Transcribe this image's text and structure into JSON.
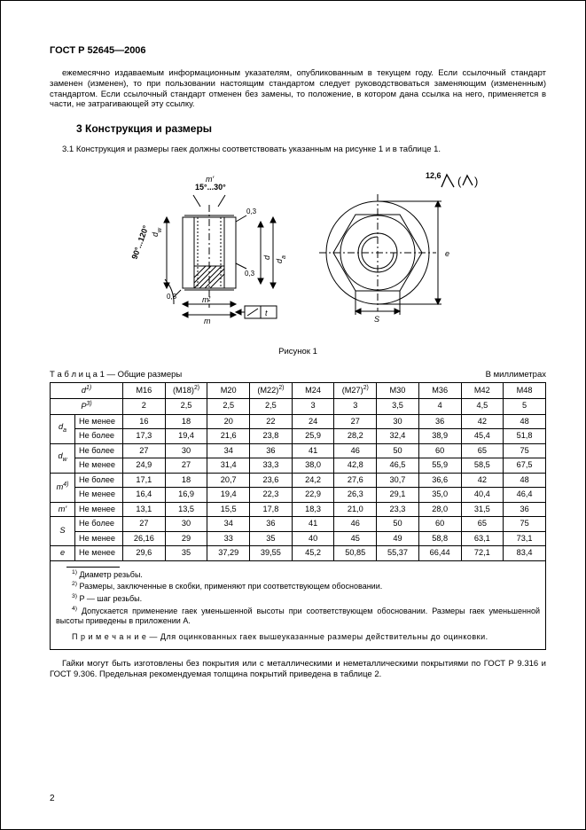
{
  "std_id": "ГОСТ Р 52645—2006",
  "top_para": "ежемесячно издаваемым информационным указателям, опубликованным в текущем году. Если ссылочный стандарт заменен (изменен), то при пользовании настоящим стандартом следует руководствоваться заменяющим (измененным) стандартом. Если ссылочный стандарт отменен без замены, то положение, в котором дана ссылка на него, применяется в части, не затрагивающей эту ссылку.",
  "sec3_title": "3  Конструкция и размеры",
  "sec3_1": "3.1  Конструкция и размеры гаек должны соответствовать указанным на рисунке 1 и в таблице 1.",
  "fig_caption": "Рисунок 1",
  "table_title_left": "Т а б л и ц а  1 — Общие размеры",
  "table_title_right": "В миллиметрах",
  "col_headers": [
    "M16",
    "(M18)",
    "M20",
    "(M22)",
    "M24",
    "(M27)",
    "M30",
    "M36",
    "M42",
    "M48"
  ],
  "col_head_sup2": "2)",
  "rows": [
    {
      "hdr": "P",
      "hsup": "3)",
      "span": 2,
      "lbl": "",
      "vals": [
        "2",
        "2,5",
        "2,5",
        "2,5",
        "3",
        "3",
        "3,5",
        "4",
        "4,5",
        "5"
      ]
    },
    {
      "hdr": "d",
      "hsub": "a",
      "span": 2,
      "lbl": "Не менее",
      "vals": [
        "16",
        "18",
        "20",
        "22",
        "24",
        "27",
        "30",
        "36",
        "42",
        "48"
      ]
    },
    {
      "hdr": "",
      "span": 0,
      "lbl": "Не более",
      "vals": [
        "17,3",
        "19,4",
        "21,6",
        "23,8",
        "25,9",
        "28,2",
        "32,4",
        "38,9",
        "45,4",
        "51,8"
      ]
    },
    {
      "hdr": "d",
      "hsub": "w",
      "span": 2,
      "lbl": "Не более",
      "vals": [
        "27",
        "30",
        "34",
        "36",
        "41",
        "46",
        "50",
        "60",
        "65",
        "75"
      ]
    },
    {
      "hdr": "",
      "span": 0,
      "lbl": "Не менее",
      "vals": [
        "24,9",
        "27",
        "31,4",
        "33,3",
        "38,0",
        "42,8",
        "46,5",
        "55,9",
        "58,5",
        "67,5"
      ]
    },
    {
      "hdr": "m",
      "hsup": "4)",
      "span": 2,
      "lbl": "Не более",
      "vals": [
        "17,1",
        "18",
        "20,7",
        "23,6",
        "24,2",
        "27,6",
        "30,7",
        "36,6",
        "42",
        "48"
      ]
    },
    {
      "hdr": "",
      "span": 0,
      "lbl": "Не менее",
      "vals": [
        "16,4",
        "16,9",
        "19,4",
        "22,3",
        "22,9",
        "26,3",
        "29,1",
        "35,0",
        "40,4",
        "46,4"
      ]
    },
    {
      "hdr": "m′",
      "span": 1,
      "lbl": "Не менее",
      "vals": [
        "13,1",
        "13,5",
        "15,5",
        "17,8",
        "18,3",
        "21,0",
        "23,3",
        "28,0",
        "31,5",
        "36"
      ]
    },
    {
      "hdr": "S",
      "span": 2,
      "lbl": "Не более",
      "vals": [
        "27",
        "30",
        "34",
        "36",
        "41",
        "46",
        "50",
        "60",
        "65",
        "75"
      ]
    },
    {
      "hdr": "",
      "span": 0,
      "lbl": "Не менее",
      "vals": [
        "26,16",
        "29",
        "33",
        "35",
        "40",
        "45",
        "49",
        "58,8",
        "63,1",
        "73,1"
      ]
    },
    {
      "hdr": "e",
      "span": 1,
      "lbl": "Не менее",
      "vals": [
        "29,6",
        "35",
        "37,29",
        "39,55",
        "45,2",
        "50,85",
        "55,37",
        "66,44",
        "72,1",
        "83,4"
      ]
    }
  ],
  "d_header": "d",
  "d_header_sup": "1)",
  "fn1": "Диаметр резьбы.",
  "fn2": "Размеры, заключенные в скобки, применяют при соответствующем обосновании.",
  "fn3": "P — шаг резьбы.",
  "fn4": "Допускается применение гаек уменьшенной высоты при соответствующем обосновании. Размеры гаек уменьшенной высоты приведены в приложении А.",
  "note": "П р и м е ч а н и е — Для оцинкованных гаек вышеуказанные размеры действительны до оцинковки.",
  "btm_para": "Гайки могут быть изготовлены без покрытия или с металлическими и неметаллическими покрытиями по ГОСТ Р 9.316 и ГОСТ 9.306. Предельная рекомендуемая толщина покрытий приведена в таблице 2.",
  "page_num": "2",
  "fig": {
    "labels": {
      "m_prime_top": "m′",
      "angle1": "15°...30°",
      "angle2": "90°...120°",
      "r03a": "0,3",
      "r03b": "0,3",
      "r03c": "0,3",
      "dw": "d",
      "dw_sub": "w",
      "da": "d",
      "da_sub": "a",
      "d": "d",
      "m_prime": "m′",
      "m": "m",
      "t": "t",
      "e": "e",
      "s": "S",
      "ra": "12,6"
    },
    "colors": {
      "line": "#000"
    }
  }
}
